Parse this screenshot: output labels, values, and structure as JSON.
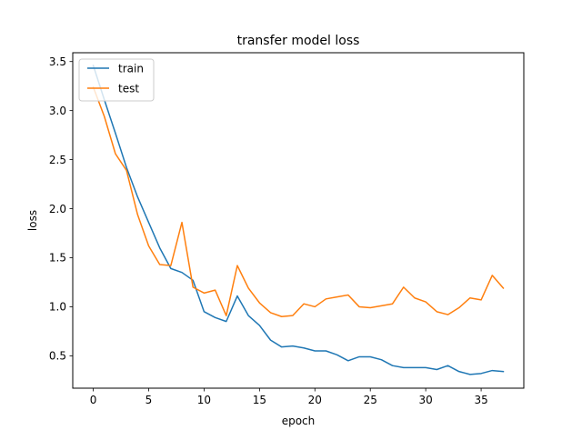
{
  "chart_data": {
    "type": "line",
    "title": "transfer model loss",
    "xlabel": "epoch",
    "ylabel": "loss",
    "xlim": [
      -1.85,
      38.85
    ],
    "ylim": [
      0.17,
      3.59
    ],
    "x_ticks": [
      0,
      5,
      10,
      15,
      20,
      25,
      30,
      35
    ],
    "y_ticks": [
      0.5,
      1.0,
      1.5,
      2.0,
      2.5,
      3.0,
      3.5
    ],
    "x_tick_labels": [
      "0",
      "5",
      "10",
      "15",
      "20",
      "25",
      "30",
      "35"
    ],
    "y_tick_labels": [
      "0.5",
      "1.0",
      "1.5",
      "2.0",
      "2.5",
      "3.0",
      "3.5"
    ],
    "grid": false,
    "legend_position": "top-left",
    "x": [
      0,
      1,
      2,
      3,
      4,
      5,
      6,
      7,
      8,
      9,
      10,
      11,
      12,
      13,
      14,
      15,
      16,
      17,
      18,
      19,
      20,
      21,
      22,
      23,
      24,
      25,
      26,
      27,
      28,
      29,
      30,
      31,
      32,
      33,
      34,
      35,
      36,
      37
    ],
    "series": [
      {
        "name": "train",
        "color": "#1f77b4",
        "values": [
          3.46,
          3.11,
          2.77,
          2.42,
          2.12,
          1.86,
          1.6,
          1.39,
          1.35,
          1.27,
          0.95,
          0.89,
          0.85,
          1.11,
          0.91,
          0.81,
          0.66,
          0.59,
          0.6,
          0.58,
          0.55,
          0.55,
          0.51,
          0.45,
          0.49,
          0.49,
          0.46,
          0.4,
          0.38,
          0.38,
          0.38,
          0.36,
          0.4,
          0.34,
          0.31,
          0.32,
          0.35,
          0.34
        ]
      },
      {
        "name": "test",
        "color": "#ff7f0e",
        "values": [
          3.24,
          2.94,
          2.56,
          2.39,
          1.94,
          1.62,
          1.43,
          1.42,
          1.86,
          1.2,
          1.14,
          1.17,
          0.91,
          1.42,
          1.19,
          1.04,
          0.94,
          0.9,
          0.91,
          1.03,
          1.0,
          1.08,
          1.1,
          1.12,
          1.0,
          0.99,
          1.01,
          1.03,
          1.2,
          1.09,
          1.05,
          0.95,
          0.92,
          0.99,
          1.09,
          1.07,
          1.32,
          1.19
        ]
      }
    ]
  }
}
